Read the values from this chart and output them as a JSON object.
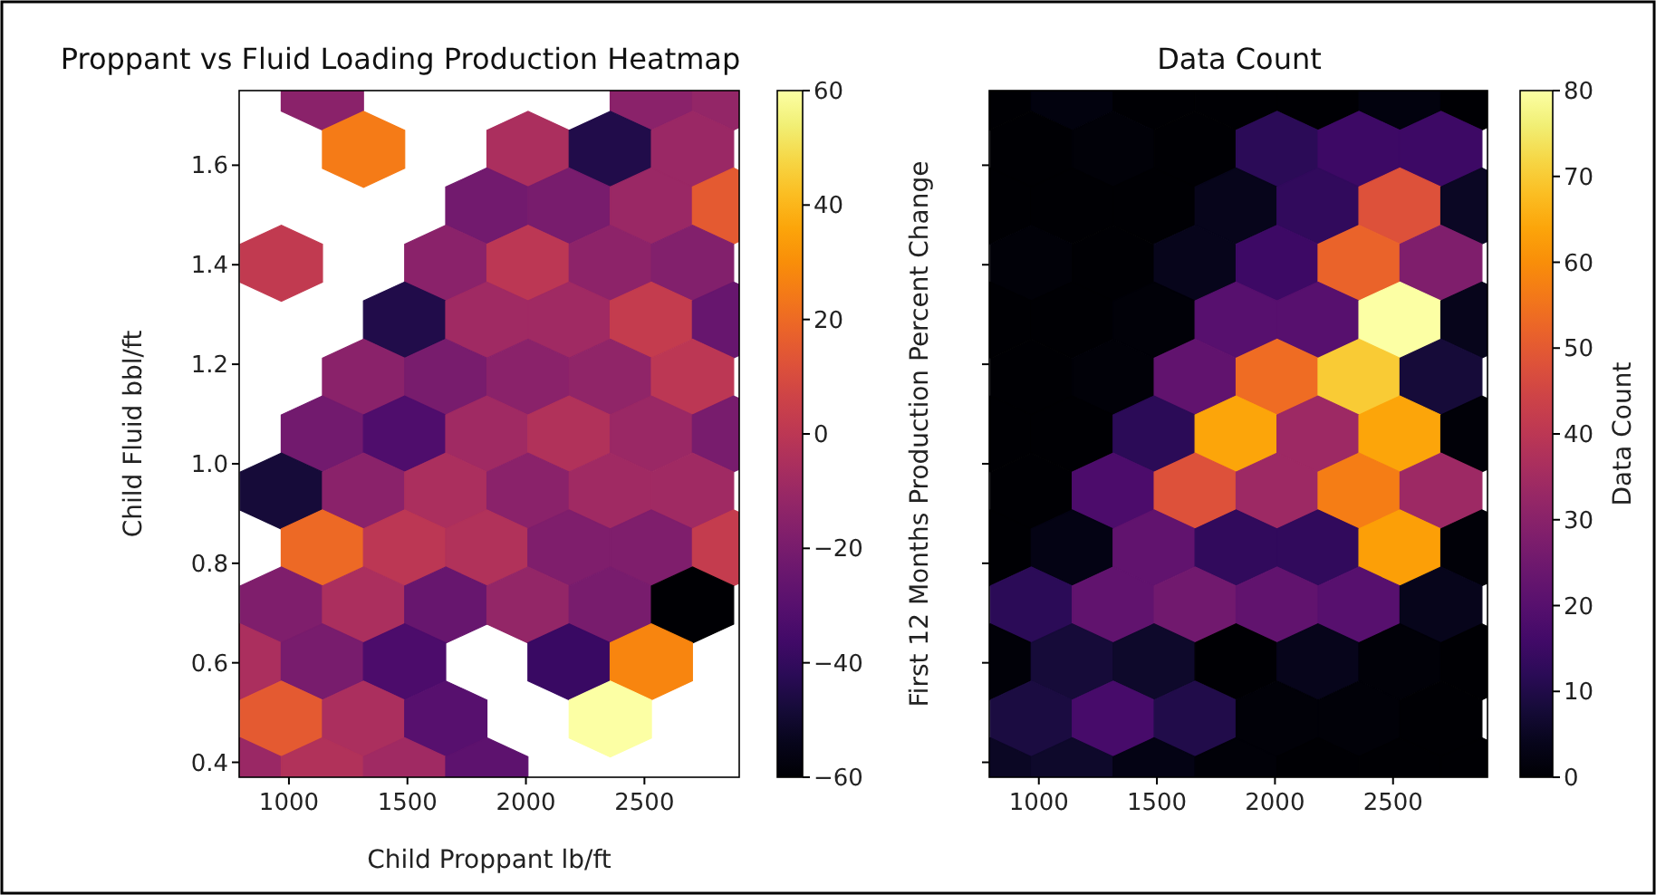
{
  "chart_data": [
    {
      "type": "scatter",
      "title": "Proppant vs Fluid Loading Production Heatmap",
      "xlabel": "Child Proppant lb/ft",
      "ylabel": "Child Fluid bbl/ft",
      "clabel": "First 12 Months Production Percent Change",
      "xlim": [
        790,
        2900
      ],
      "ylim": [
        0.37,
        1.75
      ],
      "xticks": [
        1000,
        1500,
        2000,
        2500
      ],
      "yticks": [
        0.4,
        0.6,
        0.8,
        {
          "value": 1,
          "label": "1.0"
        },
        1.2,
        1.4,
        1.6
      ],
      "clim": [
        -60,
        60
      ],
      "cticks": [
        {
          "value": -60,
          "label": "−60"
        },
        {
          "value": -40,
          "label": "−40"
        },
        {
          "value": -20,
          "label": "−20"
        },
        0,
        20,
        40,
        60
      ],
      "x": [
        1141,
        2529,
        2876,
        1315,
        2009,
        2356,
        2703,
        1835,
        2182,
        2529,
        2876,
        968,
        1662,
        2009,
        2356,
        2703,
        1488,
        1835,
        2182,
        2529,
        2876,
        1315,
        1662,
        2009,
        2356,
        2703,
        1141,
        1488,
        1835,
        2182,
        2529,
        2876,
        968,
        1315,
        1662,
        2009,
        2356,
        2703,
        1141,
        1488,
        1835,
        2182,
        2529,
        2876,
        968,
        1315,
        1662,
        2009,
        2356,
        2703,
        794,
        1141,
        1488,
        2182,
        2529,
        968,
        1315,
        1662,
        2356,
        794,
        1141,
        1488,
        1835
      ],
      "values": [
        1.747,
        1.747,
        1.747,
        1.632,
        1.632,
        1.632,
        1.632,
        1.518,
        1.518,
        1.518,
        1.518,
        1.403,
        1.403,
        1.403,
        1.403,
        1.403,
        1.289,
        1.289,
        1.289,
        1.289,
        1.289,
        1.174,
        1.174,
        1.174,
        1.174,
        1.174,
        1.06,
        1.06,
        1.06,
        1.06,
        1.06,
        1.06,
        0.945,
        0.945,
        0.945,
        0.945,
        0.945,
        0.945,
        0.831,
        0.831,
        0.831,
        0.831,
        0.831,
        0.831,
        0.716,
        0.716,
        0.716,
        0.716,
        0.716,
        0.716,
        0.602,
        0.602,
        0.602,
        0.602,
        0.602,
        0.487,
        0.487,
        0.487,
        0.487,
        0.373,
        0.373,
        0.373,
        0.373
      ],
      "cvalues": [
        -15,
        -15,
        -12,
        25,
        -5,
        -45,
        -10,
        -22,
        -20,
        -10,
        15,
        2,
        -15,
        0,
        -14,
        -17,
        -45,
        -8,
        -8,
        3,
        -25,
        -15,
        -20,
        -15,
        -13,
        0,
        -22,
        -32,
        -8,
        -3,
        -10,
        -20,
        -48,
        -15,
        -5,
        -15,
        -8,
        -8,
        20,
        0,
        -3,
        -18,
        -18,
        3,
        -18,
        -5,
        -25,
        -12,
        -20,
        -60,
        -5,
        -20,
        -33,
        -38,
        28,
        15,
        -5,
        -30,
        60,
        -10,
        -3,
        -8,
        -28
      ]
    },
    {
      "type": "scatter",
      "title": "Data Count",
      "clabel": "Data Count",
      "tick_labels": "x",
      "xlim": [
        790,
        2900
      ],
      "ylim": [
        0.37,
        1.75
      ],
      "xticks": [
        1000,
        1500,
        2000,
        2500
      ],
      "yticks": [
        {
          "value": 0.4,
          "label": null
        },
        {
          "value": 0.6,
          "label": null
        },
        {
          "value": 0.8,
          "label": null
        },
        {
          "value": 1,
          "label": null
        },
        {
          "value": 1.2,
          "label": null
        },
        {
          "value": 1.4,
          "label": null
        },
        {
          "value": 1.6,
          "label": null
        }
      ],
      "clim": [
        0,
        80
      ],
      "cticks": [
        0,
        10,
        20,
        30,
        40,
        50,
        60,
        70,
        80
      ],
      "x": [
        794,
        1141,
        1488,
        1835,
        2182,
        2529,
        2876,
        968,
        1315,
        1662,
        2009,
        2356,
        2703,
        794,
        1141,
        1488,
        1835,
        2182,
        2529,
        2876,
        968,
        1315,
        1662,
        2009,
        2356,
        2703,
        794,
        1141,
        1488,
        1835,
        2182,
        2529,
        2876,
        968,
        1315,
        1662,
        2009,
        2356,
        2703,
        794,
        1141,
        1488,
        1835,
        2182,
        2529,
        2876,
        968,
        1315,
        1662,
        2009,
        2356,
        2703,
        794,
        1141,
        1488,
        1835,
        2182,
        2529,
        2876,
        968,
        1315,
        1662,
        2009,
        2356,
        2703,
        794,
        1141,
        1488,
        1835,
        2182,
        2529,
        2876,
        968,
        1315,
        1662,
        2009,
        2356,
        2703,
        794,
        1141,
        1488,
        1835,
        2182,
        2529,
        2876
      ],
      "values": [
        1.747,
        1.747,
        1.747,
        1.747,
        1.747,
        1.747,
        1.747,
        1.632,
        1.632,
        1.632,
        1.632,
        1.632,
        1.632,
        1.518,
        1.518,
        1.518,
        1.518,
        1.518,
        1.518,
        1.518,
        1.403,
        1.403,
        1.403,
        1.403,
        1.403,
        1.403,
        1.289,
        1.289,
        1.289,
        1.289,
        1.289,
        1.289,
        1.289,
        1.174,
        1.174,
        1.174,
        1.174,
        1.174,
        1.174,
        1.06,
        1.06,
        1.06,
        1.06,
        1.06,
        1.06,
        1.06,
        0.945,
        0.945,
        0.945,
        0.945,
        0.945,
        0.945,
        0.831,
        0.831,
        0.831,
        0.831,
        0.831,
        0.831,
        0.831,
        0.716,
        0.716,
        0.716,
        0.716,
        0.716,
        0.716,
        0.602,
        0.602,
        0.602,
        0.602,
        0.602,
        0.602,
        0.602,
        0.487,
        0.487,
        0.487,
        0.487,
        0.487,
        0.487,
        0.373,
        0.373,
        0.373,
        0.373,
        0.373,
        0.373,
        0.373
      ],
      "cvalues": [
        0,
        2,
        0,
        0,
        0,
        2,
        0,
        0,
        1,
        0,
        12,
        15,
        15,
        0,
        0,
        0,
        4,
        13,
        48,
        5,
        1,
        0,
        4,
        15,
        52,
        28,
        0,
        0,
        1,
        20,
        20,
        80,
        4,
        0,
        1,
        22,
        54,
        70,
        8,
        0,
        0,
        12,
        64,
        34,
        64,
        1,
        0,
        18,
        48,
        34,
        57,
        34,
        0,
        3,
        22,
        13,
        13,
        63,
        1,
        12,
        22,
        25,
        22,
        20,
        4,
        1,
        8,
        6,
        0,
        4,
        1,
        0,
        9,
        17,
        10,
        1,
        1,
        0,
        5,
        6,
        3,
        1,
        0,
        0,
        0
      ]
    }
  ]
}
